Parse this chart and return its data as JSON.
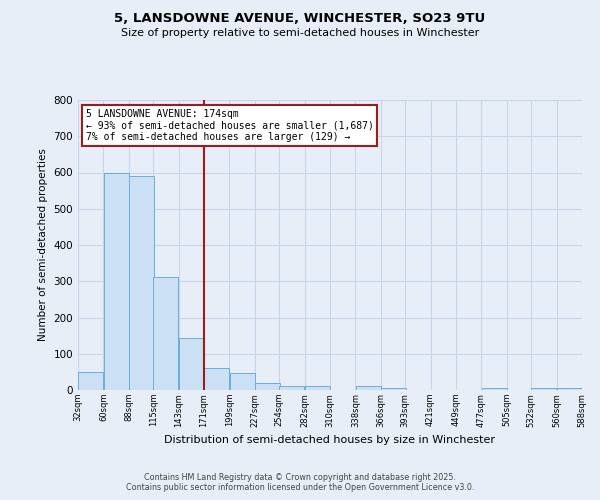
{
  "title_line1": "5, LANSDOWNE AVENUE, WINCHESTER, SO23 9TU",
  "title_line2": "Size of property relative to semi-detached houses in Winchester",
  "xlabel": "Distribution of semi-detached houses by size in Winchester",
  "ylabel": "Number of semi-detached properties",
  "bar_left_edges": [
    32,
    60,
    88,
    115,
    143,
    171,
    199,
    227,
    254,
    282,
    310,
    338,
    366,
    393,
    421,
    449,
    477,
    505,
    532,
    560
  ],
  "bar_heights": [
    50,
    600,
    590,
    312,
    143,
    60,
    46,
    18,
    12,
    10,
    0,
    10,
    5,
    0,
    0,
    0,
    5,
    0,
    5,
    5
  ],
  "bin_width": 28,
  "tick_labels": [
    "32sqm",
    "60sqm",
    "88sqm",
    "115sqm",
    "143sqm",
    "171sqm",
    "199sqm",
    "227sqm",
    "254sqm",
    "282sqm",
    "310sqm",
    "338sqm",
    "366sqm",
    "393sqm",
    "421sqm",
    "449sqm",
    "477sqm",
    "505sqm",
    "532sqm",
    "560sqm",
    "588sqm"
  ],
  "bar_color": "#cce0f5",
  "bar_edge_color": "#6aaed6",
  "property_line_x": 171,
  "property_line_color": "#9b1c1c",
  "annotation_title": "5 LANSDOWNE AVENUE: 174sqm",
  "annotation_line1": "← 93% of semi-detached houses are smaller (1,687)",
  "annotation_line2": "7% of semi-detached houses are larger (129) →",
  "annotation_box_color": "#ffffff",
  "annotation_box_edge_color": "#9b1c1c",
  "ylim": [
    0,
    800
  ],
  "yticks": [
    0,
    100,
    200,
    300,
    400,
    500,
    600,
    700,
    800
  ],
  "grid_color": "#c8d4e8",
  "background_color": "#e8eef8",
  "footer_line1": "Contains HM Land Registry data © Crown copyright and database right 2025.",
  "footer_line2": "Contains public sector information licensed under the Open Government Licence v3.0."
}
